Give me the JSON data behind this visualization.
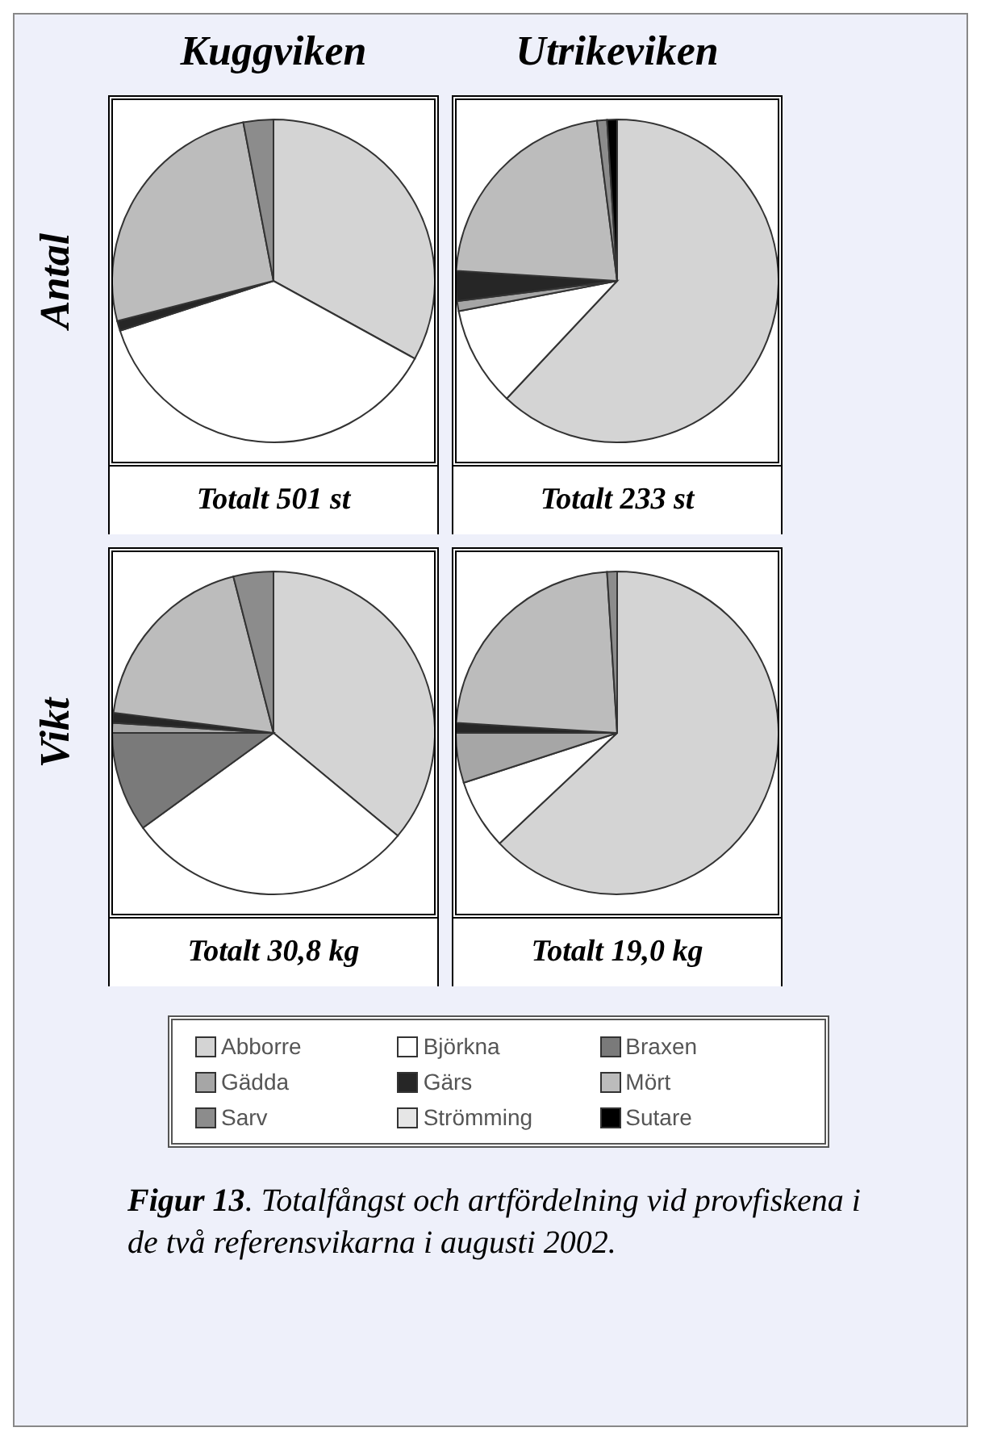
{
  "chart_data": [
    {
      "type": "pie",
      "title": "Kuggviken",
      "ylabel": "Antal",
      "legend": "bottom",
      "annotations": [
        "Totalt 501 st"
      ],
      "categories": [
        "Abborre",
        "Björkna",
        "Braxen",
        "Gädda",
        "Gärs",
        "Mört",
        "Sarv",
        "Strömming",
        "Sutare"
      ],
      "values": [
        33,
        37,
        0,
        0,
        1,
        26,
        3,
        0,
        0
      ],
      "colors": [
        "#d4d4d4",
        "#ffffff",
        "#7a7a7a",
        "#a6a6a6",
        "#262626",
        "#bcbcbc",
        "#8c8c8c",
        "#e6e6e6",
        "#000000"
      ]
    },
    {
      "type": "pie",
      "title": "Utrikeviken",
      "annotations": [
        "Totalt 233 st"
      ],
      "categories": [
        null,
        null,
        null,
        null,
        null,
        null,
        null,
        null,
        null
      ],
      "values": [
        62,
        10,
        0,
        1,
        3,
        22,
        1,
        0,
        1
      ],
      "colors": [
        "#d4d4d4",
        "#ffffff",
        "#7a7a7a",
        "#a6a6a6",
        "#262626",
        "#bcbcbc",
        "#8c8c8c",
        "#e6e6e6",
        "#000000"
      ]
    },
    {
      "type": "pie",
      "ylabel": "Vikt",
      "annotations": [
        "Totalt 30,8 kg"
      ],
      "categories": [
        null,
        null,
        null,
        null,
        null,
        null,
        null,
        null,
        null
      ],
      "values": [
        36,
        29,
        10,
        1,
        1,
        19,
        4,
        0,
        0
      ],
      "colors": [
        "#d4d4d4",
        "#ffffff",
        "#7a7a7a",
        "#a6a6a6",
        "#262626",
        "#bcbcbc",
        "#8c8c8c",
        "#e6e6e6",
        "#000000"
      ]
    },
    {
      "type": "pie",
      "annotations": [
        "Totalt 19,0 kg",
        "Figur 13. Totalfångst och artfördelning vid provfiskena i de två referensvikarna i augusti 2002."
      ],
      "categories": [
        null,
        null,
        null,
        null,
        null,
        null,
        null,
        null,
        null
      ],
      "values": [
        63,
        7,
        0,
        5,
        1,
        23,
        1,
        0,
        0
      ],
      "colors": [
        "#d4d4d4",
        "#ffffff",
        "#7a7a7a",
        "#a6a6a6",
        "#262626",
        "#bcbcbc",
        "#8c8c8c",
        "#e6e6e6",
        "#000000"
      ]
    }
  ]
}
